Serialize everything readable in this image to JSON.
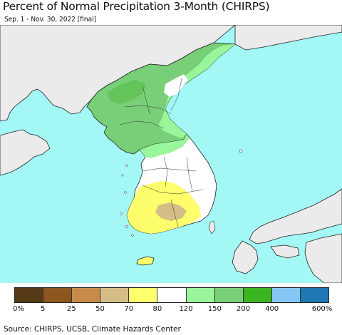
{
  "title": "Percent of Normal Precipitation 3-Month (CHIRPS)",
  "subtitle": "Sep. 1 - Nov. 30, 2022 [final]",
  "source": "Source: CHIRPS, UCSB, Climate Hazards Center",
  "colors": {
    "sea": "#a3f7f4",
    "land_outside": "#ecebec",
    "border": "#222222"
  },
  "legend": {
    "colors": [
      "#553a17",
      "#8c561f",
      "#c48c48",
      "#d4bd86",
      "#fefe6c",
      "#ffffff",
      "#9af69a",
      "#79ce78",
      "#3cb321",
      "#85c6f4",
      "#1f77b4"
    ],
    "labels": [
      "0%",
      "5",
      "25",
      "50",
      "70",
      "80",
      "120",
      "150",
      "200",
      "400",
      "600%"
    ]
  }
}
